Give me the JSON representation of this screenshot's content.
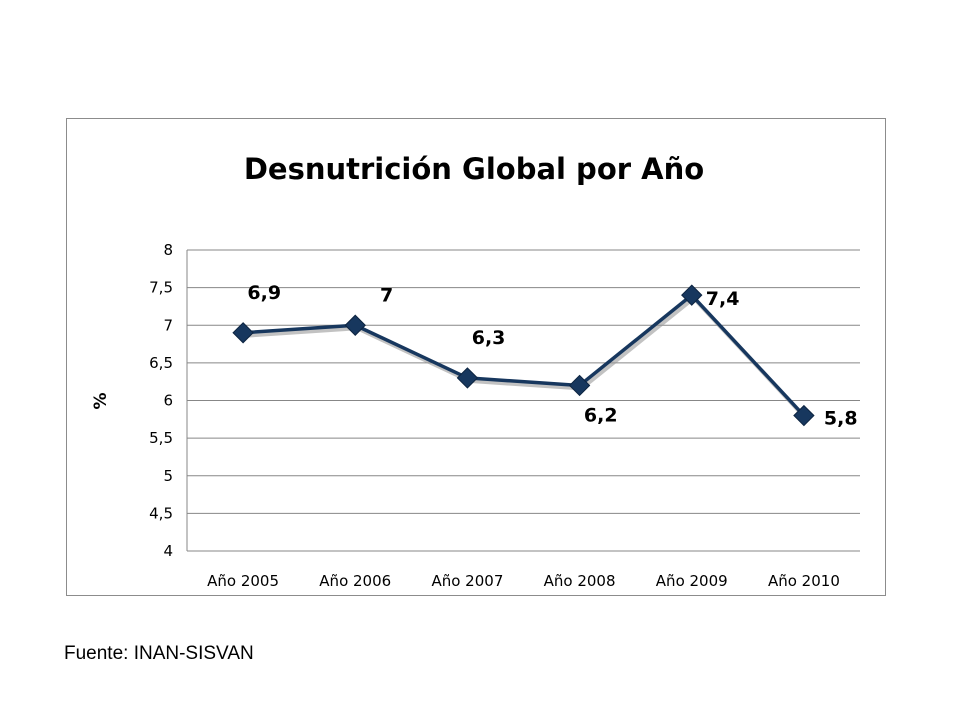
{
  "chart_data": {
    "type": "line",
    "title": "Desnutrición Global por Año",
    "xlabel": "",
    "ylabel": "%",
    "categories": [
      "Año 2005",
      "Año 2006",
      "Año 2007",
      "Año 2008",
      "Año 2009",
      "Año 2010"
    ],
    "series": [
      {
        "values": [
          6.9,
          7,
          6.3,
          6.2,
          7.4,
          5.8
        ]
      }
    ],
    "data_labels": [
      "6,9",
      "7",
      "6,3",
      "6,2",
      "7,4",
      "5,8"
    ],
    "ylim": [
      4,
      8
    ],
    "yticks": [
      4,
      4.5,
      5,
      5.5,
      6,
      6.5,
      7,
      7.5,
      8
    ],
    "ytick_labels": [
      "4",
      "4,5",
      "5",
      "5,5",
      "6",
      "6,5",
      "7",
      "7,5",
      "8"
    ],
    "grid": true,
    "line_color": "#17375e",
    "marker": "diamond"
  },
  "footer": {
    "source": "Fuente: INAN-SISVAN"
  }
}
